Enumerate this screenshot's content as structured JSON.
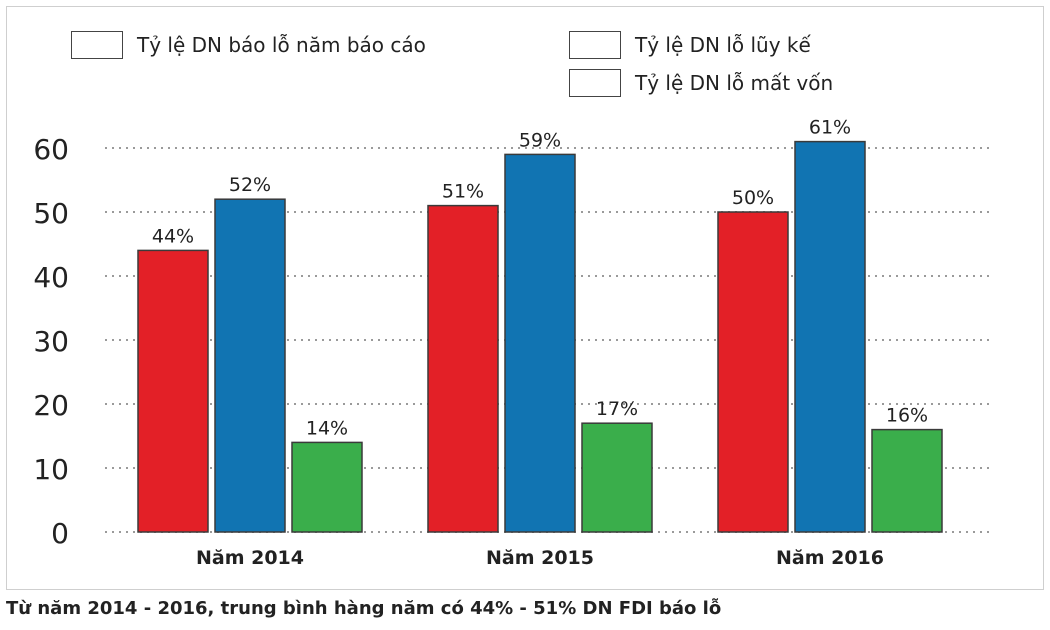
{
  "chart_data": {
    "type": "bar",
    "categories": [
      "Năm 2014",
      "Năm 2015",
      "Năm 2016"
    ],
    "series": [
      {
        "name": "Tỷ lệ DN báo lỗ năm báo cáo",
        "values": [
          44,
          51,
          50
        ],
        "labels": [
          "44%",
          "51%",
          "50%"
        ],
        "color": "#e32027"
      },
      {
        "name": "Tỷ lệ DN lỗ lũy kế",
        "values": [
          52,
          59,
          61
        ],
        "labels": [
          "52%",
          "59%",
          "61%"
        ],
        "color": "#1174b2"
      },
      {
        "name": "Tỷ lệ DN lỗ mất vốn",
        "values": [
          14,
          17,
          16
        ],
        "labels": [
          "14%",
          "17%",
          "16%"
        ],
        "color": "#3aae4b"
      }
    ],
    "yticks": [
      "0",
      "10",
      "20",
      "30",
      "40",
      "50",
      "60"
    ],
    "ylim": [
      0,
      60
    ],
    "grid": true,
    "legend": "top"
  },
  "footnote": "Từ năm 2014 - 2016, trung bình hàng năm có 44% - 51% DN FDI báo lỗ"
}
